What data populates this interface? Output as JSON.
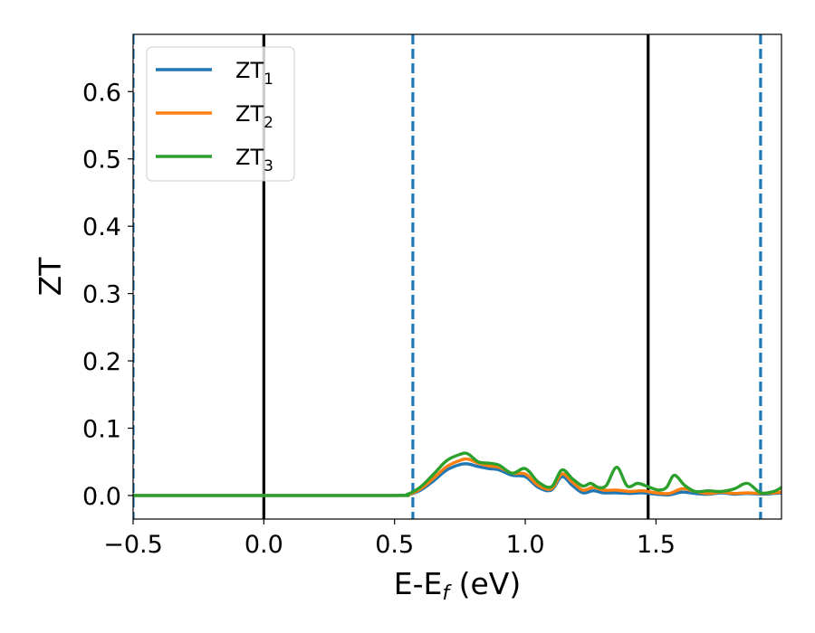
{
  "chart_data": {
    "type": "line",
    "title": "",
    "xlabel": "E-E",
    "xlabel_sub": "f",
    "xlabel_unit": " (eV)",
    "ylabel": "ZT",
    "xlim": [
      -0.5,
      1.98
    ],
    "ylim": [
      -0.035,
      0.685
    ],
    "xticks": [
      -0.5,
      0.0,
      0.5,
      1.0,
      1.5
    ],
    "xtick_labels": [
      "−0.5",
      "0.0",
      "0.5",
      "1.0",
      "1.5"
    ],
    "yticks": [
      0.0,
      0.1,
      0.2,
      0.3,
      0.4,
      0.5,
      0.6
    ],
    "ytick_labels": [
      "0.0",
      "0.1",
      "0.2",
      "0.3",
      "0.4",
      "0.5",
      "0.6"
    ],
    "grid": false,
    "legend_position": "top-left",
    "vlines": [
      {
        "x": -0.5,
        "style": "dashed",
        "color": "#1f77b4"
      },
      {
        "x": 0.0,
        "style": "solid",
        "color": "#000000"
      },
      {
        "x": 0.57,
        "style": "dashed",
        "color": "#1f77b4"
      },
      {
        "x": 1.47,
        "style": "solid",
        "color": "#000000"
      },
      {
        "x": 1.9,
        "style": "dashed",
        "color": "#1f77b4"
      }
    ],
    "series": [
      {
        "name": "ZT",
        "sub": "1",
        "color": "#1f77b4",
        "x": [
          -0.5,
          0.0,
          0.5,
          0.55,
          0.6,
          0.65,
          0.7,
          0.75,
          0.78,
          0.82,
          0.86,
          0.9,
          0.95,
          1.0,
          1.05,
          1.1,
          1.14,
          1.18,
          1.22,
          1.26,
          1.3,
          1.35,
          1.4,
          1.45,
          1.5,
          1.55,
          1.6,
          1.65,
          1.7,
          1.75,
          1.8,
          1.85,
          1.9,
          1.95,
          1.98
        ],
        "y": [
          0.0,
          0.0,
          0.0,
          0.001,
          0.008,
          0.022,
          0.038,
          0.046,
          0.047,
          0.043,
          0.04,
          0.038,
          0.03,
          0.028,
          0.012,
          0.008,
          0.028,
          0.015,
          0.004,
          0.007,
          0.004,
          0.004,
          0.003,
          0.004,
          0.002,
          0.001,
          0.005,
          0.003,
          0.002,
          0.004,
          0.002,
          0.003,
          0.002,
          0.003,
          0.004
        ]
      },
      {
        "name": "ZT",
        "sub": "2",
        "color": "#ff7f0e",
        "x": [
          -0.5,
          0.0,
          0.5,
          0.55,
          0.6,
          0.65,
          0.7,
          0.75,
          0.78,
          0.82,
          0.86,
          0.9,
          0.95,
          1.0,
          1.05,
          1.1,
          1.14,
          1.18,
          1.22,
          1.26,
          1.3,
          1.35,
          1.4,
          1.45,
          1.5,
          1.55,
          1.6,
          1.65,
          1.7,
          1.75,
          1.8,
          1.85,
          1.9,
          1.95,
          1.98
        ],
        "y": [
          0.0,
          0.0,
          0.0,
          0.001,
          0.01,
          0.026,
          0.043,
          0.052,
          0.054,
          0.048,
          0.044,
          0.042,
          0.033,
          0.032,
          0.015,
          0.01,
          0.032,
          0.02,
          0.008,
          0.012,
          0.008,
          0.008,
          0.006,
          0.007,
          0.004,
          0.003,
          0.01,
          0.006,
          0.003,
          0.005,
          0.003,
          0.004,
          0.003,
          0.004,
          0.005
        ]
      },
      {
        "name": "ZT",
        "sub": "3",
        "color": "#2ca02c",
        "x": [
          -0.5,
          0.0,
          0.5,
          0.55,
          0.6,
          0.65,
          0.7,
          0.75,
          0.78,
          0.82,
          0.86,
          0.9,
          0.95,
          1.0,
          1.05,
          1.1,
          1.14,
          1.18,
          1.22,
          1.25,
          1.28,
          1.31,
          1.35,
          1.39,
          1.43,
          1.47,
          1.51,
          1.54,
          1.57,
          1.61,
          1.65,
          1.7,
          1.75,
          1.8,
          1.85,
          1.9,
          1.95,
          1.98
        ],
        "y": [
          0.0,
          0.0,
          0.0,
          0.002,
          0.013,
          0.032,
          0.052,
          0.061,
          0.062,
          0.05,
          0.048,
          0.045,
          0.033,
          0.04,
          0.02,
          0.013,
          0.038,
          0.025,
          0.014,
          0.018,
          0.012,
          0.015,
          0.042,
          0.014,
          0.018,
          0.013,
          0.008,
          0.012,
          0.03,
          0.015,
          0.006,
          0.007,
          0.006,
          0.01,
          0.018,
          0.004,
          0.006,
          0.012
        ]
      }
    ]
  }
}
